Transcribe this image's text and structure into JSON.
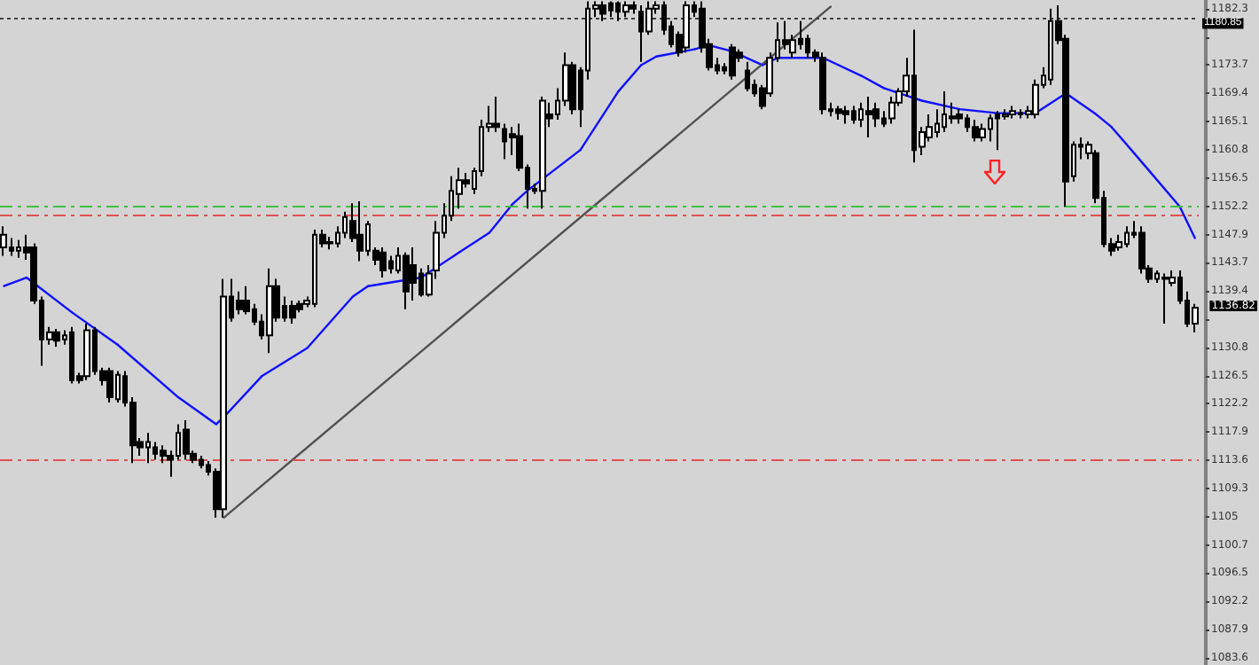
{
  "chart_data": {
    "type": "candlestick",
    "categories": [
      null,
      null,
      null,
      null,
      null,
      null,
      null,
      null,
      null,
      null,
      null,
      null,
      null,
      null,
      null,
      null,
      null,
      null,
      null,
      null,
      null,
      null,
      null,
      null,
      null,
      null,
      null,
      null,
      null,
      null,
      null,
      null,
      null,
      null,
      null,
      null,
      null,
      null,
      null,
      null,
      null,
      null,
      null,
      null,
      null,
      null,
      null,
      null,
      null,
      null,
      null,
      null,
      null,
      null,
      null,
      null,
      null,
      null,
      null,
      null,
      null,
      null,
      null,
      null,
      null,
      null,
      null,
      null,
      null,
      null,
      null,
      null,
      null,
      null,
      null,
      null,
      null,
      null,
      null,
      null,
      null,
      null,
      null,
      null,
      null,
      null,
      null,
      null,
      null,
      null,
      null,
      null,
      null,
      null,
      null,
      null,
      null,
      null,
      null,
      null,
      null,
      null,
      null,
      null,
      null,
      null,
      null,
      null,
      null,
      null,
      null,
      null,
      null,
      null,
      null,
      null,
      null,
      null,
      null,
      null,
      null,
      null,
      null,
      null,
      null,
      null,
      null,
      null,
      null,
      null,
      null,
      null,
      null,
      null,
      null,
      null,
      null,
      null,
      null,
      null,
      null,
      null,
      null,
      null,
      null,
      null,
      null,
      null,
      null,
      null,
      null,
      null,
      null,
      null,
      null,
      null,
      null,
      null
    ],
    "ohlc": [
      [
        1146.0,
        1149.2,
        1144.7,
        1147.9
      ],
      [
        1146.0,
        1147.4,
        1144.7,
        1145.5
      ],
      [
        1145.5,
        1147.1,
        1144.4,
        1146.0
      ],
      [
        1146.0,
        1147.9,
        1144.1,
        1145.2
      ],
      [
        1146.0,
        1146.6,
        1137.4,
        1137.9
      ],
      [
        1137.9,
        1138.5,
        1128.0,
        1132.0
      ],
      [
        1132.0,
        1133.9,
        1131.2,
        1133.1
      ],
      [
        1133.1,
        1133.6,
        1130.9,
        1131.8
      ],
      [
        1132.0,
        1133.4,
        1131.2,
        1132.6
      ],
      [
        1133.1,
        1133.9,
        1125.3,
        1125.8
      ],
      [
        1126.4,
        1126.9,
        1125.3,
        1125.8
      ],
      [
        1126.4,
        1134.4,
        1125.8,
        1133.4
      ],
      [
        1133.4,
        1133.9,
        1126.6,
        1127.2
      ],
      [
        1127.2,
        1127.7,
        1125.0,
        1125.8
      ],
      [
        1127.2,
        1127.7,
        1122.4,
        1123.2
      ],
      [
        1122.9,
        1127.2,
        1122.4,
        1126.6
      ],
      [
        1126.4,
        1127.2,
        1121.8,
        1122.4
      ],
      [
        1122.4,
        1123.2,
        1113.2,
        1115.9
      ],
      [
        1116.4,
        1117.0,
        1114.3,
        1115.6
      ],
      [
        1115.6,
        1117.8,
        1113.2,
        1116.4
      ],
      [
        1115.6,
        1116.4,
        1113.7,
        1114.6
      ],
      [
        1115.1,
        1115.9,
        1113.2,
        1114.3
      ],
      [
        1114.3,
        1115.1,
        1111.1,
        1113.7
      ],
      [
        1114.3,
        1119.1,
        1113.7,
        1117.8
      ],
      [
        1118.3,
        1119.7,
        1113.7,
        1114.6
      ],
      [
        1114.6,
        1115.1,
        1113.2,
        1113.7
      ],
      [
        1113.7,
        1114.3,
        1112.4,
        1112.9
      ],
      [
        1112.9,
        1113.5,
        1111.3,
        1111.9
      ],
      [
        1111.9,
        1112.4,
        1104.9,
        1106.2
      ],
      [
        1106.2,
        1141.2,
        1104.9,
        1138.5
      ],
      [
        1138.5,
        1141.2,
        1134.7,
        1135.3
      ],
      [
        1137.9,
        1139.3,
        1135.8,
        1136.6
      ],
      [
        1137.9,
        1140.1,
        1135.8,
        1136.3
      ],
      [
        1136.6,
        1137.4,
        1134.2,
        1134.7
      ],
      [
        1134.7,
        1135.8,
        1132.0,
        1132.6
      ],
      [
        1132.6,
        1142.8,
        1129.9,
        1140.1
      ],
      [
        1140.1,
        1141.2,
        1134.7,
        1135.3
      ],
      [
        1137.1,
        1138.5,
        1134.7,
        1135.3
      ],
      [
        1137.1,
        1137.9,
        1134.4,
        1135.3
      ],
      [
        1137.4,
        1137.9,
        1136.1,
        1136.6
      ],
      [
        1137.4,
        1138.5,
        1136.9,
        1137.9
      ],
      [
        1137.4,
        1148.7,
        1136.9,
        1147.9
      ],
      [
        1147.9,
        1148.7,
        1146.0,
        1146.6
      ],
      [
        1146.8,
        1147.6,
        1145.7,
        1146.6
      ],
      [
        1146.6,
        1149.2,
        1146.0,
        1148.2
      ],
      [
        1148.2,
        1151.4,
        1147.4,
        1150.6
      ],
      [
        1150.0,
        1152.7,
        1146.8,
        1147.4
      ],
      [
        1147.9,
        1153.0,
        1143.9,
        1145.5
      ],
      [
        1145.5,
        1150.0,
        1144.7,
        1149.5
      ],
      [
        1145.5,
        1146.0,
        1143.3,
        1144.1
      ],
      [
        1145.2,
        1146.0,
        1141.4,
        1142.5
      ],
      [
        1143.9,
        1144.7,
        1142.0,
        1142.8
      ],
      [
        1142.5,
        1146.0,
        1142.0,
        1144.7
      ],
      [
        1144.7,
        1145.2,
        1136.6,
        1139.3
      ],
      [
        1143.3,
        1146.0,
        1137.9,
        1140.6
      ],
      [
        1142.0,
        1142.8,
        1138.5,
        1138.8
      ],
      [
        1138.8,
        1143.3,
        1138.5,
        1142.0
      ],
      [
        1142.5,
        1150.0,
        1141.2,
        1148.2
      ],
      [
        1148.2,
        1152.7,
        1147.4,
        1150.8
      ],
      [
        1150.8,
        1156.8,
        1150.0,
        1154.6
      ],
      [
        1154.1,
        1158.1,
        1151.9,
        1156.2
      ],
      [
        1156.2,
        1157.3,
        1155.1,
        1155.7
      ],
      [
        1154.9,
        1158.1,
        1154.1,
        1157.6
      ],
      [
        1157.6,
        1165.4,
        1156.8,
        1164.3
      ],
      [
        1164.3,
        1167.5,
        1163.5,
        1164.8
      ],
      [
        1164.8,
        1168.9,
        1163.5,
        1164.3
      ],
      [
        1164.0,
        1164.8,
        1159.4,
        1162.1
      ],
      [
        1163.2,
        1164.3,
        1160.0,
        1162.7
      ],
      [
        1162.9,
        1164.8,
        1157.6,
        1158.1
      ],
      [
        1158.1,
        1158.6,
        1151.9,
        1154.9
      ],
      [
        1154.9,
        1155.7,
        1154.1,
        1154.6
      ],
      [
        1154.6,
        1168.9,
        1151.9,
        1168.3
      ],
      [
        1166.2,
        1168.0,
        1164.3,
        1165.6
      ],
      [
        1166.2,
        1170.2,
        1165.4,
        1168.3
      ],
      [
        1168.3,
        1175.6,
        1167.5,
        1173.7
      ],
      [
        1173.7,
        1174.2,
        1166.2,
        1167.0
      ],
      [
        1172.9,
        1173.4,
        1164.3,
        1167.0
      ],
      [
        1172.9,
        1183.4,
        1171.5,
        1182.3
      ],
      [
        1182.3,
        1183.4,
        1181.0,
        1182.8
      ],
      [
        1182.8,
        1183.4,
        1180.4,
        1181.5
      ],
      [
        1183.1,
        1183.4,
        1181.0,
        1182.0
      ],
      [
        1183.1,
        1183.4,
        1180.4,
        1181.8
      ],
      [
        1181.8,
        1183.4,
        1181.0,
        1182.8
      ],
      [
        1182.8,
        1183.4,
        1181.5,
        1182.3
      ],
      [
        1181.8,
        1182.8,
        1174.2,
        1178.8
      ],
      [
        1178.8,
        1183.4,
        1178.3,
        1182.3
      ],
      [
        1182.3,
        1183.4,
        1181.5,
        1182.8
      ],
      [
        1182.8,
        1183.4,
        1178.3,
        1179.1
      ],
      [
        1179.6,
        1180.4,
        1176.4,
        1176.9
      ],
      [
        1178.3,
        1178.8,
        1175.0,
        1175.6
      ],
      [
        1176.4,
        1183.4,
        1175.6,
        1182.8
      ],
      [
        1182.8,
        1183.4,
        1181.0,
        1181.8
      ],
      [
        1182.3,
        1183.4,
        1175.6,
        1176.4
      ],
      [
        1176.9,
        1177.7,
        1172.9,
        1173.4
      ],
      [
        1173.7,
        1174.8,
        1172.3,
        1172.9
      ],
      [
        1173.4,
        1174.0,
        1172.3,
        1172.9
      ],
      [
        1176.4,
        1176.9,
        1171.5,
        1172.1
      ],
      [
        1175.6,
        1176.1,
        1174.2,
        1174.8
      ],
      [
        1172.9,
        1174.2,
        1169.7,
        1170.2
      ],
      [
        1170.7,
        1171.5,
        1168.9,
        1169.4
      ],
      [
        1170.2,
        1170.7,
        1167.0,
        1167.5
      ],
      [
        1169.4,
        1175.6,
        1168.9,
        1174.8
      ],
      [
        1174.8,
        1180.2,
        1174.2,
        1177.5
      ],
      [
        1177.5,
        1180.4,
        1176.1,
        1176.9
      ],
      [
        1175.6,
        1178.3,
        1174.8,
        1177.5
      ],
      [
        1177.7,
        1180.4,
        1176.1,
        1176.9
      ],
      [
        1177.7,
        1178.3,
        1174.8,
        1175.6
      ],
      [
        1175.6,
        1176.1,
        1174.2,
        1175.0
      ],
      [
        1174.8,
        1175.6,
        1166.2,
        1167.0
      ],
      [
        1167.0,
        1168.0,
        1165.9,
        1166.7
      ],
      [
        1167.0,
        1167.5,
        1165.4,
        1166.4
      ],
      [
        1166.7,
        1167.5,
        1164.8,
        1166.2
      ],
      [
        1166.7,
        1167.5,
        1164.8,
        1165.4
      ],
      [
        1165.4,
        1168.0,
        1164.3,
        1167.0
      ],
      [
        1166.7,
        1168.9,
        1162.7,
        1166.2
      ],
      [
        1167.0,
        1168.0,
        1164.3,
        1165.6
      ],
      [
        1165.6,
        1166.7,
        1164.3,
        1164.8
      ],
      [
        1165.6,
        1168.9,
        1164.8,
        1168.0
      ],
      [
        1168.0,
        1170.2,
        1167.5,
        1169.7
      ],
      [
        1169.7,
        1174.8,
        1168.9,
        1172.1
      ],
      [
        1172.1,
        1179.1,
        1158.9,
        1160.8
      ],
      [
        1161.3,
        1164.3,
        1160.0,
        1163.5
      ],
      [
        1162.7,
        1166.2,
        1162.1,
        1164.3
      ],
      [
        1163.5,
        1167.0,
        1162.7,
        1164.8
      ],
      [
        1164.3,
        1169.7,
        1163.5,
        1166.2
      ],
      [
        1165.9,
        1168.0,
        1164.8,
        1165.6
      ],
      [
        1166.2,
        1167.0,
        1164.8,
        1165.6
      ],
      [
        1165.6,
        1166.2,
        1163.5,
        1164.3
      ],
      [
        1164.3,
        1165.4,
        1162.1,
        1162.7
      ],
      [
        1162.7,
        1164.8,
        1162.1,
        1164.0
      ],
      [
        1164.0,
        1166.2,
        1162.1,
        1165.6
      ],
      [
        1166.2,
        1166.7,
        1160.8,
        1165.6
      ],
      [
        1165.9,
        1167.0,
        1165.4,
        1166.2
      ],
      [
        1166.2,
        1167.5,
        1165.6,
        1166.7
      ],
      [
        1166.2,
        1167.0,
        1165.6,
        1166.4
      ],
      [
        1166.2,
        1167.5,
        1165.6,
        1166.7
      ],
      [
        1166.2,
        1171.5,
        1165.6,
        1170.7
      ],
      [
        1170.7,
        1173.4,
        1170.2,
        1172.1
      ],
      [
        1171.5,
        1182.3,
        1170.7,
        1180.4
      ],
      [
        1180.4,
        1182.8,
        1176.9,
        1177.5
      ],
      [
        1177.7,
        1178.3,
        1152.2,
        1156.0
      ],
      [
        1156.8,
        1162.1,
        1156.0,
        1161.6
      ],
      [
        1161.6,
        1162.7,
        1159.4,
        1161.3
      ],
      [
        1160.3,
        1162.1,
        1159.4,
        1161.6
      ],
      [
        1160.3,
        1160.8,
        1152.7,
        1153.5
      ],
      [
        1153.5,
        1154.6,
        1146.0,
        1146.5
      ],
      [
        1146.5,
        1147.4,
        1144.7,
        1145.5
      ],
      [
        1146.0,
        1147.9,
        1145.5,
        1146.8
      ],
      [
        1146.5,
        1149.2,
        1146.0,
        1148.2
      ],
      [
        1148.2,
        1150.0,
        1147.4,
        1147.9
      ],
      [
        1148.2,
        1149.2,
        1142.0,
        1142.8
      ],
      [
        1142.8,
        1143.3,
        1140.6,
        1141.2
      ],
      [
        1141.2,
        1142.5,
        1140.6,
        1142.0
      ],
      [
        1141.4,
        1142.0,
        1134.4,
        1141.2
      ],
      [
        1140.6,
        1142.5,
        1140.1,
        1141.4
      ],
      [
        1141.4,
        1142.5,
        1137.4,
        1137.9
      ],
      [
        1137.9,
        1139.3,
        1133.9,
        1134.4
      ],
      [
        1134.4,
        1137.4,
        1133.1,
        1136.82
      ]
    ],
    "series": [
      {
        "type": "line",
        "color": "#1010ff",
        "values": [
          1140.1,
          null,
          null,
          1141.4,
          null,
          null,
          null,
          null,
          null,
          1136.1,
          null,
          null,
          null,
          null,
          null,
          1131.2,
          null,
          null,
          null,
          null,
          null,
          null,
          null,
          1123.2,
          null,
          null,
          null,
          null,
          1119.1,
          1120.2,
          null,
          null,
          null,
          null,
          1126.4,
          null,
          null,
          null,
          null,
          null,
          1130.7,
          null,
          null,
          null,
          null,
          null,
          1138.5,
          null,
          1140.1,
          null,
          null,
          null,
          null,
          null,
          null,
          1141.4,
          null,
          null,
          null,
          null,
          1145.2,
          null,
          null,
          null,
          1148.2,
          null,
          null,
          1152.5,
          null,
          1154.6,
          null,
          null,
          null,
          null,
          null,
          null,
          1160.8,
          null,
          null,
          null,
          null,
          1169.7,
          null,
          null,
          1173.7,
          null,
          1175.0,
          null,
          null,
          null,
          null,
          1176.1,
          null,
          1176.7,
          null,
          null,
          1175.8,
          null,
          null,
          null,
          1173.7,
          null,
          1174.8,
          null,
          null,
          null,
          null,
          null,
          1174.8,
          null,
          null,
          null,
          null,
          1172.1,
          null,
          null,
          1170.2,
          null,
          null,
          null,
          null,
          1168.3,
          null,
          null,
          null,
          null,
          1167.0,
          null,
          null,
          null,
          null,
          1166.4,
          null,
          null,
          null,
          null,
          1166.4,
          null,
          null,
          null,
          1169.4,
          null,
          null,
          null,
          1166.2,
          null,
          1164.3,
          null,
          null,
          1160.3,
          null,
          1157.6,
          null,
          null,
          null,
          1152.2,
          null,
          1147.4
        ]
      },
      {
        "type": "line",
        "color": "#505050",
        "values": [
          null,
          null,
          null,
          null,
          null,
          null,
          null,
          null,
          null,
          null,
          null,
          null,
          null,
          null,
          null,
          null,
          null,
          null,
          null,
          null,
          null,
          null,
          null,
          null,
          null,
          null,
          null,
          null,
          null,
          1104.9,
          null,
          null,
          null,
          null,
          null,
          null,
          null,
          null,
          null,
          null,
          null,
          null,
          null,
          null,
          null,
          null,
          null,
          null,
          null,
          null,
          null,
          null,
          null,
          null,
          null,
          null,
          null,
          null,
          null,
          null,
          null,
          null,
          null,
          null,
          null,
          null,
          null,
          null,
          null,
          null,
          null,
          null,
          null,
          null,
          null,
          null,
          null,
          null,
          null,
          null,
          null,
          null,
          null,
          null,
          null,
          null,
          null,
          null,
          null,
          null,
          null,
          null,
          null,
          null,
          null,
          null,
          null,
          null,
          null,
          null,
          null,
          null,
          null,
          null,
          null,
          null,
          null,
          null,
          null,
          1182.6,
          null,
          null,
          null,
          null,
          null,
          null,
          null,
          null,
          null,
          null,
          null,
          null,
          null,
          null,
          null,
          null,
          null,
          null,
          null,
          null,
          null,
          null,
          null,
          null,
          null,
          null,
          null,
          null,
          null,
          null,
          null,
          null,
          null,
          null,
          null,
          null,
          null,
          null,
          null,
          null,
          null,
          null,
          null,
          null,
          null,
          null,
          null,
          null
        ]
      }
    ],
    "ylim": [
      1082.5,
      1183.6
    ],
    "yticks": [
      1083.6,
      1087.9,
      1092.2,
      1096.5,
      1100.7,
      1105.0,
      1109.3,
      1113.6,
      1117.9,
      1122.2,
      1126.5,
      1130.8,
      {
        "value": 1135.1,
        "label": null
      },
      1139.4,
      1143.7,
      1147.9,
      1152.2,
      1156.5,
      1160.8,
      1165.1,
      1169.4,
      1173.7,
      {
        "value": 1178.0,
        "label": null
      },
      1182.3
    ],
    "tick_labels": "y",
    "ref_lines": [
      {
        "axis": "y",
        "value": 1180.85,
        "label": "1180.85",
        "color": "#404040",
        "line_style": "dotted"
      },
      {
        "axis": "y",
        "value": 1152.2,
        "color": "#40c040",
        "line_style": "dashed"
      },
      {
        "axis": "y",
        "value": 1150.9,
        "color": "#e05050",
        "line_style": "dashed"
      },
      {
        "axis": "y",
        "value": 1113.7,
        "color": "#e05050",
        "line_style": "dashed"
      }
    ],
    "annotations": [
      "1136.82"
    ]
  }
}
